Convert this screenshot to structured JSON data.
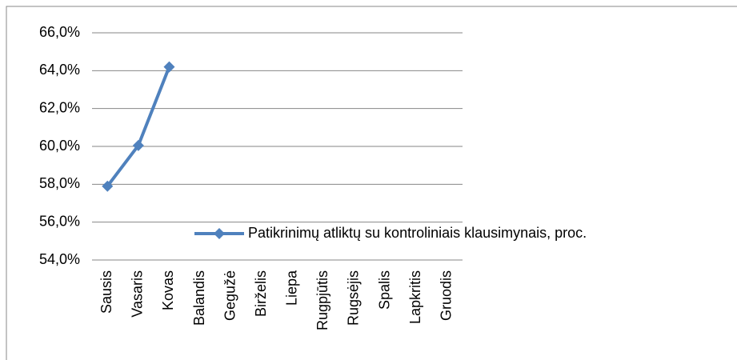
{
  "chart_data": {
    "type": "line",
    "categories": [
      "Sausis",
      "Vasaris",
      "Kovas",
      "Balandis",
      "Gegužė",
      "Birželis",
      "Liepa",
      "Rugpjūtis",
      "Rugsėjis",
      "Spalis",
      "Lapkritis",
      "Gruodis"
    ],
    "series": [
      {
        "name": "Patikrinimų atliktų su kontroliniais klausimynais, proc.",
        "color": "#4f81bd",
        "values": [
          57.9,
          60.05,
          64.2,
          null,
          null,
          null,
          null,
          null,
          null,
          null,
          null,
          null
        ]
      }
    ],
    "ylim": [
      54,
      66
    ],
    "yticks": [
      {
        "value": 54,
        "label": "54,0%"
      },
      {
        "value": 56,
        "label": "56,0%"
      },
      {
        "value": 58,
        "label": "58,0%"
      },
      {
        "value": 60,
        "label": "60,0%"
      },
      {
        "value": 62,
        "label": "62,0%"
      },
      {
        "value": 64,
        "label": "64,0%"
      },
      {
        "value": 66,
        "label": "66,0%"
      }
    ],
    "grid": true
  }
}
